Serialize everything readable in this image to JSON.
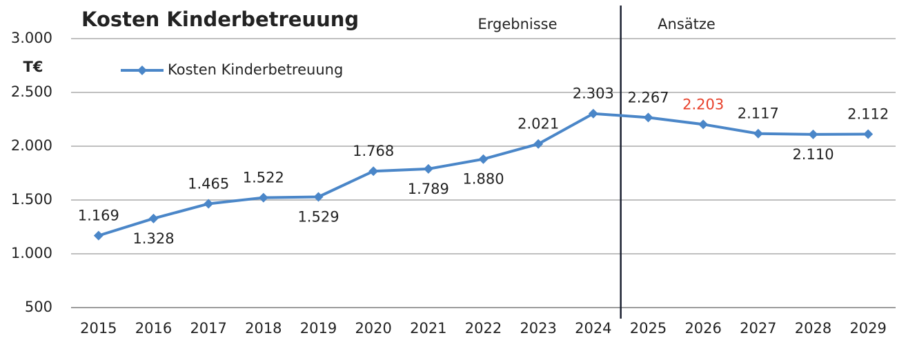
{
  "chart_data": {
    "type": "line",
    "title": "Kosten Kinderbetreuung",
    "y_unit_label": "T€",
    "annotations": [
      "Ergebnisse",
      "Ansätze"
    ],
    "categories": [
      "2015",
      "2016",
      "2017",
      "2018",
      "2019",
      "2020",
      "2021",
      "2022",
      "2023",
      "2024",
      "2025",
      "2026",
      "2027",
      "2028",
      "2029"
    ],
    "series": [
      {
        "name": "Kosten Kinderbetreuung",
        "color": "#4a86c8",
        "values": [
          1169,
          1328,
          1465,
          1522,
          1529,
          1768,
          1789,
          1880,
          2021,
          2303,
          2267,
          2203,
          2117,
          2110,
          2112
        ],
        "value_labels": [
          "1.169",
          "1.328",
          "1.465",
          "1.522",
          "1.529",
          "1.768",
          "1.789",
          "1.880",
          "2.021",
          "2.303",
          "2.267",
          "2.203",
          "2.117",
          "2.110",
          "2.112"
        ],
        "value_label_colors": [
          "#222",
          "#222",
          "#222",
          "#222",
          "#222",
          "#222",
          "#222",
          "#222",
          "#222",
          "#222",
          "#222",
          "#e8402a",
          "#222",
          "#222",
          "#222"
        ]
      }
    ],
    "ylim": [
      500,
      3000
    ],
    "yticks": [
      500,
      {
        "value": 1000,
        "label": "1.000"
      },
      {
        "value": 1500,
        "label": "1.500"
      },
      {
        "value": 2000,
        "label": "2.000"
      },
      {
        "value": 2500,
        "label": "2.500"
      },
      {
        "value": 3000,
        "label": "3.000"
      }
    ],
    "grid": true,
    "legend": "upper left"
  }
}
